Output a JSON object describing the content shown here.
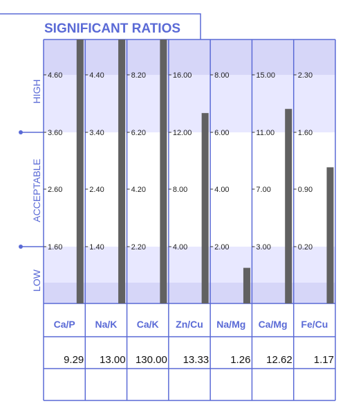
{
  "chart_data": {
    "type": "bar",
    "title": "SIGNIFICANT RATIOS",
    "zones": {
      "high": "HIGH",
      "acceptable": "ACCEPTABLE",
      "low": "LOW"
    },
    "categories": [
      "Ca/P",
      "Na/K",
      "Ca/K",
      "Zn/Cu",
      "Na/Mg",
      "Ca/Mg",
      "Fe/Cu"
    ],
    "ticks": [
      [
        "4.60",
        "3.60",
        "2.60",
        "1.60"
      ],
      [
        "4.40",
        "3.40",
        "2.40",
        "1.40"
      ],
      [
        "8.20",
        "6.20",
        "4.20",
        "2.20"
      ],
      [
        "16.00",
        "12.00",
        "8.00",
        "4.00"
      ],
      [
        "8.00",
        "6.00",
        "4.00",
        "2.00"
      ],
      [
        "15.00",
        "11.00",
        "7.00",
        "3.00"
      ],
      [
        "2.30",
        "1.60",
        "0.90",
        "0.20"
      ]
    ],
    "values": [
      9.29,
      13.0,
      130.0,
      13.33,
      1.26,
      12.62,
      1.17
    ],
    "value_labels": [
      "9.29",
      "13.00",
      "130.00",
      "13.33",
      "1.26",
      "12.62",
      "1.17"
    ],
    "colors": {
      "accent": "#5a6ad6",
      "high_band": "#e8e8ff",
      "low_band": "#e8e8ff",
      "acceptable_band": "#ffffff",
      "top_band": "#d6d6f8",
      "bottom_band": "#d6d6f8",
      "bar": "#616161"
    }
  }
}
